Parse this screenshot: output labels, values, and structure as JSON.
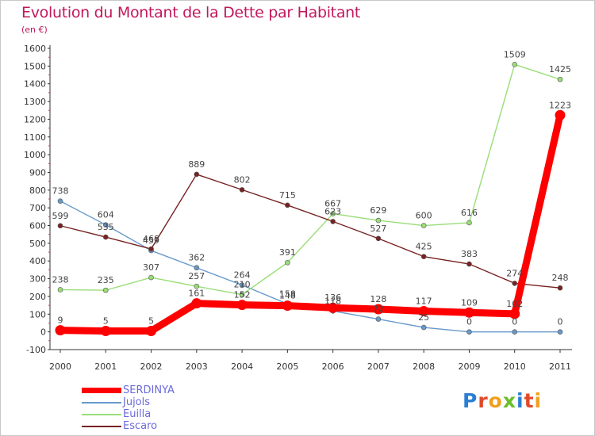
{
  "chart_data": {
    "type": "line",
    "title": "Evolution du Montant de la Dette par Habitant",
    "subtitle": "(en €)",
    "xlabel": "",
    "ylabel": "",
    "x": [
      "2000",
      "2001",
      "2002",
      "2003",
      "2004",
      "2005",
      "2006",
      "2007",
      "2008",
      "2009",
      "2010",
      "2011"
    ],
    "ylim": [
      -100,
      1600
    ],
    "yticks": [
      -100,
      0,
      100,
      200,
      300,
      400,
      500,
      600,
      700,
      800,
      900,
      1000,
      1100,
      1200,
      1300,
      1400,
      1500,
      1600
    ],
    "grid": false,
    "legend_position": "bottom-left",
    "series": [
      {
        "name": "SERDINYA",
        "color": "#ff0000",
        "values": [
          9,
          5,
          5,
          161,
          152,
          148,
          136,
          128,
          117,
          109,
          102,
          1223
        ]
      },
      {
        "name": "Jujols",
        "color": "#6699cc",
        "values": [
          738,
          604,
          459,
          362,
          264,
          158,
          118,
          72,
          25,
          0,
          0,
          0
        ]
      },
      {
        "name": "Euilla",
        "color": "#99dd77",
        "values": [
          238,
          235,
          307,
          257,
          210,
          391,
          667,
          629,
          600,
          616,
          1509,
          1425
        ]
      },
      {
        "name": "Escaro",
        "color": "#772222",
        "values": [
          599,
          535,
          468,
          889,
          802,
          715,
          623,
          527,
          425,
          383,
          274,
          248
        ]
      }
    ]
  },
  "logo": {
    "text": "Proxiti",
    "letter_colors": [
      "#2a7fd4",
      "#e04a2a",
      "#f0a020",
      "#6abf2a",
      "#2a7fd4",
      "#e04a2a",
      "#f0a020"
    ]
  }
}
